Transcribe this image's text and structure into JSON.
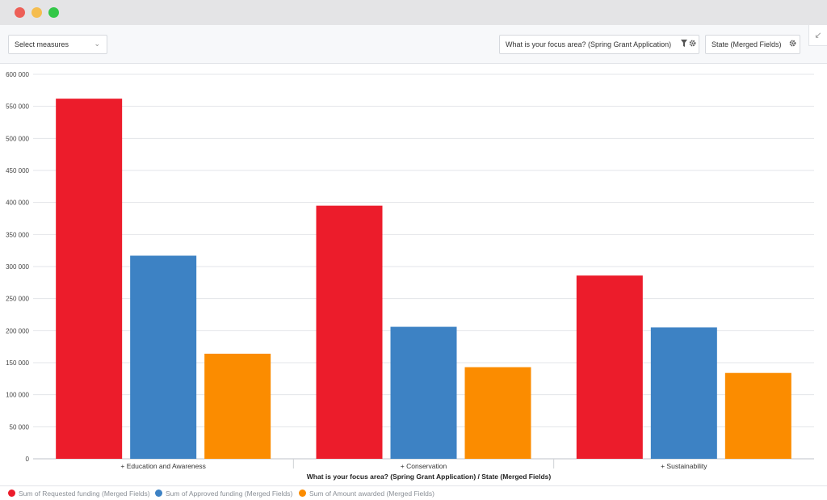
{
  "window": {
    "controls": [
      "close",
      "minimize",
      "maximize"
    ]
  },
  "toolbar": {
    "select_measures": "Select measures",
    "focus_filter": "What is your focus area? (Spring Grant Application)",
    "state_filter": "State (Merged Fields)",
    "icons": [
      "chevron-down-icon",
      "filter-icon",
      "gear-icon",
      "expand-icon"
    ]
  },
  "chart_data": {
    "type": "bar",
    "categories": [
      "+ Education and Awareness",
      "+ Conservation",
      "+ Sustainability"
    ],
    "series": [
      {
        "name": "Sum of Requested funding (Merged Fields)",
        "values": [
          562000,
          395000,
          286000
        ],
        "color": "#ec1c2b"
      },
      {
        "name": "Sum of Approved funding (Merged Fields)",
        "values": [
          317000,
          206000,
          205000
        ],
        "color": "#3d82c4"
      },
      {
        "name": "Sum of Amount awarded (Merged Fields)",
        "values": [
          164000,
          143000,
          134000
        ],
        "color": "#fb8c00"
      }
    ],
    "ylim": [
      0,
      600000
    ],
    "yticks": [
      0,
      50000,
      100000,
      150000,
      200000,
      250000,
      300000,
      350000,
      400000,
      450000,
      500000,
      550000,
      600000
    ],
    "ytick_labels": [
      "0",
      "50 000",
      "100 000",
      "150 000",
      "200 000",
      "250 000",
      "300 000",
      "350 000",
      "400 000",
      "450 000",
      "500 000",
      "550 000",
      "600 000"
    ],
    "xlabel": "What is your focus area? (Spring Grant Application) / State (Merged Fields)",
    "ylabel": "",
    "grid": true,
    "legend_position": "bottom-left"
  }
}
